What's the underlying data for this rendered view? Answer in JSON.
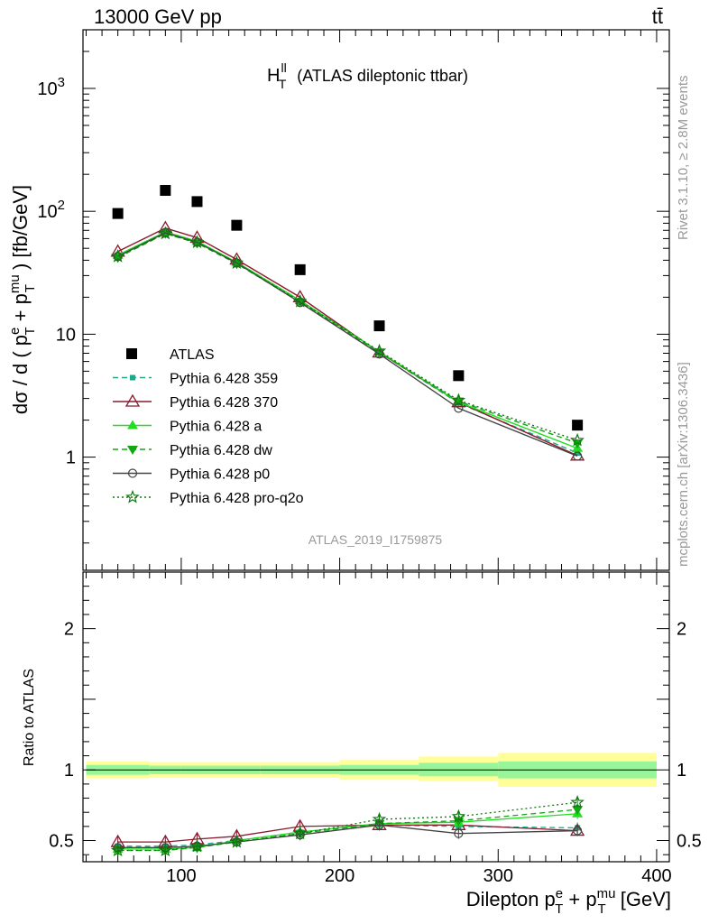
{
  "header": {
    "left": "13000 GeV pp",
    "right": "tt̄"
  },
  "main_title": {
    "var_main": "H",
    "var_sup": "ll",
    "var_sub": "T",
    "rest": "(ATLAS dileptonic ttbar)"
  },
  "y_label_main": {
    "a": "dσ / d ( p",
    "b_sup": "e",
    "b_sub": "T",
    "c": " + p",
    "d_sup": "mu",
    "d_sub": "T",
    "e": " ) [fb/GeV]"
  },
  "y_label_ratio": "Ratio to ATLAS",
  "x_label": {
    "a": "Dilepton p",
    "b_sup": "e",
    "b_sub": "T",
    "c": " + p",
    "d_sup": "mu",
    "d_sub": "T",
    "e": " [GeV]"
  },
  "side_text_top": "Rivet 3.1.10, ≥ 2.8M events",
  "side_text_bottom": "mcplots.cern.ch [arXiv:1306.3436]",
  "watermark": "ATLAS_2019_I1759875",
  "chart_data": {
    "type": "scatter",
    "main": {
      "yscale": "log",
      "ylim": [
        0.12,
        3000
      ],
      "xlim": [
        38,
        408
      ],
      "y_ticks": [
        {
          "v": 1,
          "label": "1"
        },
        {
          "v": 10,
          "label": "10"
        },
        {
          "v": 100,
          "label": "10",
          "sup": "2"
        },
        {
          "v": 1000,
          "label": "10",
          "sup": "3"
        }
      ],
      "x_bins": [
        [
          40,
          80
        ],
        [
          80,
          100
        ],
        [
          100,
          120
        ],
        [
          120,
          150
        ],
        [
          150,
          200
        ],
        [
          200,
          250
        ],
        [
          250,
          300
        ],
        [
          300,
          400
        ]
      ],
      "x": [
        60,
        90,
        110,
        135,
        175,
        225,
        275,
        350
      ],
      "atlas": [
        96,
        148,
        120,
        77,
        33.5,
        11.7,
        4.6,
        1.82
      ],
      "series": [
        {
          "name": "Pythia 6.428 359",
          "color": "#1aaa88",
          "dash": "6,4",
          "marker": "square-small",
          "values": [
            44,
            68,
            57,
            38.5,
            18.8,
            7.1,
            2.75,
            1.08
          ]
        },
        {
          "name": "Pythia 6.428 370",
          "color": "#8b1a2e",
          "dash": "",
          "marker": "triangle-open",
          "values": [
            47,
            73,
            61,
            40.5,
            20,
            7.1,
            2.8,
            1.03
          ]
        },
        {
          "name": "Pythia 6.428 a",
          "color": "#22dd22",
          "dash": "",
          "marker": "triangle",
          "values": [
            44,
            68,
            57,
            38.5,
            18.8,
            7.2,
            2.8,
            1.18
          ]
        },
        {
          "name": "Pythia 6.428 dw",
          "color": "#11a811",
          "dash": "6,4",
          "marker": "triangle-down",
          "values": [
            42,
            66,
            55,
            37.5,
            18.3,
            7.1,
            2.85,
            1.3
          ]
        },
        {
          "name": "Pythia 6.428 p0",
          "color": "#444444",
          "dash": "",
          "marker": "circle-open",
          "values": [
            43,
            67,
            56,
            38,
            18.1,
            6.9,
            2.5,
            1.02
          ]
        },
        {
          "name": "Pythia 6.428 pro-q2o",
          "color": "#117711",
          "dash": "2,3",
          "marker": "star-open",
          "values": [
            43,
            66,
            56,
            38,
            18.5,
            7.3,
            2.9,
            1.37
          ]
        }
      ]
    },
    "ratio": {
      "ylim": [
        0.35,
        2.4
      ],
      "y_ticks": [
        {
          "v": 0.5,
          "label": "0.5"
        },
        {
          "v": 1,
          "label": "1"
        },
        {
          "v": 2,
          "label": "2"
        }
      ],
      "x_ticks": [
        {
          "v": 100,
          "label": "100"
        },
        {
          "v": 200,
          "label": "200"
        },
        {
          "v": 300,
          "label": "300"
        },
        {
          "v": 400,
          "label": "400"
        }
      ],
      "band_yellow": [
        [
          0.94,
          1.06
        ],
        [
          0.945,
          1.055
        ],
        [
          0.945,
          1.055
        ],
        [
          0.945,
          1.055
        ],
        [
          0.945,
          1.055
        ],
        [
          0.93,
          1.07
        ],
        [
          0.92,
          1.095
        ],
        [
          0.88,
          1.12
        ]
      ],
      "band_green": [
        [
          0.965,
          1.035
        ],
        [
          0.97,
          1.03
        ],
        [
          0.97,
          1.03
        ],
        [
          0.97,
          1.03
        ],
        [
          0.97,
          1.03
        ],
        [
          0.965,
          1.035
        ],
        [
          0.955,
          1.05
        ],
        [
          0.94,
          1.06
        ]
      ],
      "series": [
        [
          0.46,
          0.46,
          0.47,
          0.5,
          0.56,
          0.61,
          0.6,
          0.59
        ],
        [
          0.49,
          0.49,
          0.51,
          0.53,
          0.6,
          0.61,
          0.61,
          0.57
        ],
        [
          0.44,
          0.44,
          0.45,
          0.5,
          0.56,
          0.62,
          0.63,
          0.69
        ],
        [
          0.43,
          0.43,
          0.45,
          0.49,
          0.55,
          0.62,
          0.64,
          0.72
        ],
        [
          0.45,
          0.45,
          0.46,
          0.49,
          0.54,
          0.61,
          0.55,
          0.57
        ],
        [
          0.43,
          0.43,
          0.46,
          0.49,
          0.55,
          0.65,
          0.67,
          0.77
        ]
      ]
    }
  }
}
